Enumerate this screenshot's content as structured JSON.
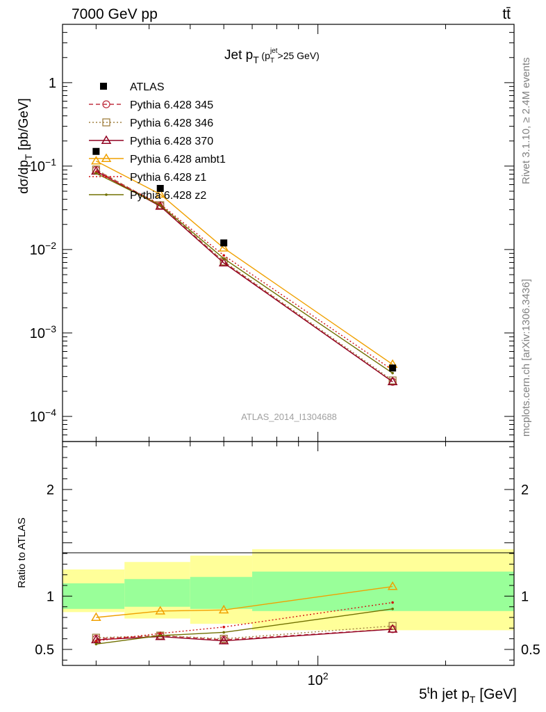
{
  "header": {
    "energy_label": "7000 GeV pp",
    "process_label": "tt̄"
  },
  "side_labels": {
    "rivet": "Rivet 3.1.10, ≥ 2.4M events",
    "source": "mcplots.cern.ch [arXiv:1306.3436]"
  },
  "chart_data": {
    "type": "line",
    "title": "Jet pT (pTjet>25 GeV)",
    "analysis_id": "ATLAS_2014_I1304688",
    "xlabel": "5th jet pT [GeV]",
    "ylabel": "dσ/dpT [pb/GeV]",
    "ratio_ylabel": "Ratio to ATLAS",
    "x_scale": "log",
    "y_scale": "log",
    "xlim": [
      25,
      290
    ],
    "ylim": [
      5e-05,
      5
    ],
    "ratio_ylim": [
      0.35,
      2.45
    ],
    "x_ticks": [
      {
        "value": 100,
        "label": "10^2"
      }
    ],
    "y_ticks": [
      {
        "value": 1,
        "label": "1"
      },
      {
        "value": 0.1,
        "label": "10^-1"
      },
      {
        "value": 0.01,
        "label": "10^-2"
      },
      {
        "value": 0.001,
        "label": "10^-3"
      },
      {
        "value": 0.0001,
        "label": "10^-4"
      }
    ],
    "ratio_ticks": [
      {
        "value": 2,
        "label": "2"
      },
      {
        "value": 1,
        "label": "1"
      },
      {
        "value": 0.5,
        "label": "0.5"
      }
    ],
    "x": [
      30,
      42.5,
      60,
      150
    ],
    "bin_edges": [
      25,
      35,
      50,
      70,
      290
    ],
    "data": {
      "name": "ATLAS",
      "values": [
        0.15,
        0.054,
        0.012,
        0.00038
      ]
    },
    "bands": {
      "green_lo": [
        0.88,
        0.9,
        0.88,
        0.86
      ],
      "green_hi": [
        1.12,
        1.16,
        1.18,
        1.23
      ],
      "yellow_lo": [
        0.85,
        0.79,
        0.74,
        0.68
      ],
      "yellow_hi": [
        1.25,
        1.32,
        1.38,
        1.44
      ]
    },
    "series": [
      {
        "name": "Pythia 6.428 345",
        "color": "#c03040",
        "dash": "6,4",
        "marker": "circle",
        "values": [
          0.09,
          0.034,
          0.0071,
          0.00026
        ],
        "ratio": [
          0.6,
          0.63,
          0.59,
          0.69
        ]
      },
      {
        "name": "Pythia 6.428 346",
        "color": "#a08040",
        "dash": "2,3",
        "marker": "square",
        "values": [
          0.091,
          0.034,
          0.0072,
          0.00027
        ],
        "ratio": [
          0.61,
          0.63,
          0.6,
          0.72
        ]
      },
      {
        "name": "Pythia 6.428 370",
        "color": "#900020",
        "dash": "",
        "marker": "triangle",
        "values": [
          0.087,
          0.033,
          0.0069,
          0.00026
        ],
        "ratio": [
          0.59,
          0.62,
          0.58,
          0.69
        ]
      },
      {
        "name": "Pythia 6.428 ambt1",
        "color": "#f0a000",
        "dash": "",
        "marker": "triangle",
        "values": [
          0.115,
          0.046,
          0.0104,
          0.00042
        ],
        "ratio": [
          0.8,
          0.86,
          0.87,
          1.09
        ]
      },
      {
        "name": "Pythia 6.428 z1",
        "color": "#d01010",
        "dash": "2,3",
        "marker": "dot",
        "values": [
          0.085,
          0.035,
          0.0085,
          0.00036
        ],
        "ratio": [
          0.58,
          0.65,
          0.71,
          0.94
        ]
      },
      {
        "name": "Pythia 6.428 z2",
        "color": "#707000",
        "dash": "",
        "marker": "dot",
        "values": [
          0.082,
          0.034,
          0.0078,
          0.00033
        ],
        "ratio": [
          0.55,
          0.63,
          0.66,
          0.88
        ]
      }
    ]
  }
}
